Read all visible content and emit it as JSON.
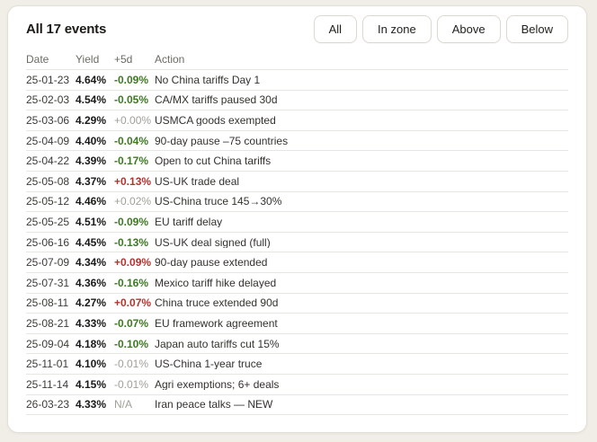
{
  "header": {
    "title": "All 17 events",
    "filters": [
      {
        "label": "All"
      },
      {
        "label": "In zone"
      },
      {
        "label": "Above"
      },
      {
        "label": "Below"
      }
    ]
  },
  "table": {
    "columns": [
      "Date",
      "Yield",
      "+5d",
      "Action"
    ],
    "rows": [
      {
        "date": "25-01-23",
        "yield": "4.64%",
        "change": "-0.09%",
        "change_type": "down",
        "action": "No China tariffs Day 1"
      },
      {
        "date": "25-02-03",
        "yield": "4.54%",
        "change": "-0.05%",
        "change_type": "down",
        "action": "CA/MX tariffs paused 30d"
      },
      {
        "date": "25-03-06",
        "yield": "4.29%",
        "change": "+0.00%",
        "change_type": "neutral",
        "action": "USMCA goods exempted"
      },
      {
        "date": "25-04-09",
        "yield": "4.40%",
        "change": "-0.04%",
        "change_type": "down",
        "action": "90-day pause –75 countries"
      },
      {
        "date": "25-04-22",
        "yield": "4.39%",
        "change": "-0.17%",
        "change_type": "down",
        "action": "Open to cut China tariffs"
      },
      {
        "date": "25-05-08",
        "yield": "4.37%",
        "change": "+0.13%",
        "change_type": "up",
        "action": "US-UK trade deal"
      },
      {
        "date": "25-05-12",
        "yield": "4.46%",
        "change": "+0.02%",
        "change_type": "neutral",
        "action": "US-China truce 145→30%"
      },
      {
        "date": "25-05-25",
        "yield": "4.51%",
        "change": "-0.09%",
        "change_type": "down",
        "action": "EU tariff delay"
      },
      {
        "date": "25-06-16",
        "yield": "4.45%",
        "change": "-0.13%",
        "change_type": "down",
        "action": "US-UK deal signed (full)"
      },
      {
        "date": "25-07-09",
        "yield": "4.34%",
        "change": "+0.09%",
        "change_type": "up",
        "action": "90-day pause extended"
      },
      {
        "date": "25-07-31",
        "yield": "4.36%",
        "change": "-0.16%",
        "change_type": "down",
        "action": "Mexico tariff hike delayed"
      },
      {
        "date": "25-08-11",
        "yield": "4.27%",
        "change": "+0.07%",
        "change_type": "up",
        "action": "China truce extended 90d"
      },
      {
        "date": "25-08-21",
        "yield": "4.33%",
        "change": "-0.07%",
        "change_type": "down",
        "action": "EU framework agreement"
      },
      {
        "date": "25-09-04",
        "yield": "4.18%",
        "change": "-0.10%",
        "change_type": "down",
        "action": "Japan auto tariffs cut 15%"
      },
      {
        "date": "25-11-01",
        "yield": "4.10%",
        "change": "-0.01%",
        "change_type": "neutral",
        "action": "US-China 1-year truce"
      },
      {
        "date": "25-11-14",
        "yield": "4.15%",
        "change": "-0.01%",
        "change_type": "neutral",
        "action": "Agri exemptions; 6+ deals"
      },
      {
        "date": "26-03-23",
        "yield": "4.33%",
        "change": "N/A",
        "change_type": "neutral",
        "action": "Iran peace talks — NEW"
      }
    ]
  },
  "colors": {
    "up": "#b2342e",
    "down": "#3c7a20",
    "neutral": "#a09f99"
  }
}
